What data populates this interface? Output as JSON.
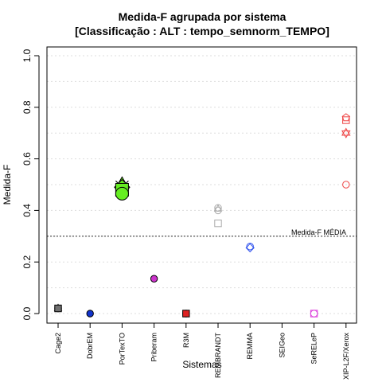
{
  "chart_data": {
    "type": "scatter",
    "title": "Medida-F agrupada por sistema",
    "subtitle": "[Classificação : ALT : tempo_semnorm_TEMPO]",
    "xlabel": "Sistemas",
    "ylabel": "Medida-F",
    "ylim": [
      0,
      1
    ],
    "yticks": [
      0.0,
      0.2,
      0.4,
      0.6,
      0.8,
      1.0
    ],
    "ytick_labels": [
      "0.0",
      "0.2",
      "0.4",
      "0.6",
      "0.8",
      "1.0"
    ],
    "grid": true,
    "categories": [
      "Cage2",
      "DobrEM",
      "PorTexTO",
      "Priberam",
      "R3M",
      "REMBRANDT",
      "REMMA",
      "SEIGeo",
      "SeRELeP",
      "XIP-L2F/Xerox"
    ],
    "reference_line": {
      "label": "Medida-F MÉDIA",
      "value": 0.3
    },
    "points": [
      {
        "category": "Cage2",
        "y": 0.02,
        "shape": "triangle",
        "fill": "#707070",
        "stroke": "#000000"
      },
      {
        "category": "Cage2",
        "y": 0.02,
        "shape": "circle",
        "fill": "#707070",
        "stroke": "#000000"
      },
      {
        "category": "Cage2",
        "y": 0.02,
        "shape": "square",
        "fill": "#707070",
        "stroke": "#000000"
      },
      {
        "category": "DobrEM",
        "y": 0.0,
        "shape": "circle",
        "fill": "#1133cc",
        "stroke": "#000000"
      },
      {
        "category": "PorTexTO",
        "y": 0.5,
        "shape": "triangle",
        "fill": "#66ee22",
        "stroke": "#000000"
      },
      {
        "category": "PorTexTO",
        "y": 0.49,
        "shape": "diamond",
        "fill": "#66ee22",
        "stroke": "#000000"
      },
      {
        "category": "PorTexTO",
        "y": 0.49,
        "shape": "x",
        "fill": "none",
        "stroke": "#000000"
      },
      {
        "category": "PorTexTO",
        "y": 0.48,
        "shape": "square",
        "fill": "#66ee22",
        "stroke": "#000000"
      },
      {
        "category": "PorTexTO",
        "y": 0.465,
        "shape": "circle",
        "fill": "#66ee22",
        "stroke": "#000000"
      },
      {
        "category": "Priberam",
        "y": 0.135,
        "shape": "circle",
        "fill": "#cc33cc",
        "stroke": "#000000"
      },
      {
        "category": "R3M",
        "y": 0.0,
        "shape": "circle",
        "fill": "#dd2222",
        "stroke": "#000000"
      },
      {
        "category": "R3M",
        "y": 0.0,
        "shape": "square",
        "fill": "#dd2222",
        "stroke": "#000000"
      },
      {
        "category": "REMBRANDT",
        "y": 0.41,
        "shape": "circle",
        "fill": "none",
        "stroke": "#aaaaaa"
      },
      {
        "category": "REMBRANDT",
        "y": 0.405,
        "shape": "triangle",
        "fill": "none",
        "stroke": "#aaaaaa"
      },
      {
        "category": "REMBRANDT",
        "y": 0.4,
        "shape": "circle",
        "fill": "none",
        "stroke": "#aaaaaa"
      },
      {
        "category": "REMBRANDT",
        "y": 0.35,
        "shape": "square",
        "fill": "none",
        "stroke": "#aaaaaa"
      },
      {
        "category": "REMMA",
        "y": 0.26,
        "shape": "circle",
        "fill": "none",
        "stroke": "#3355ee"
      },
      {
        "category": "REMMA",
        "y": 0.255,
        "shape": "diamond",
        "fill": "none",
        "stroke": "#3355ee"
      },
      {
        "category": "SeRELeP",
        "y": 0.0,
        "shape": "square",
        "fill": "none",
        "stroke": "#dd44dd"
      },
      {
        "category": "SeRELeP",
        "y": 0.0,
        "shape": "circle",
        "fill": "none",
        "stroke": "#dd44dd"
      },
      {
        "category": "XIP-L2F/Xerox",
        "y": 0.76,
        "shape": "pentagon",
        "fill": "none",
        "stroke": "#ee4444"
      },
      {
        "category": "XIP-L2F/Xerox",
        "y": 0.75,
        "shape": "square",
        "fill": "none",
        "stroke": "#ee4444"
      },
      {
        "category": "XIP-L2F/Xerox",
        "y": 0.7,
        "shape": "star",
        "fill": "none",
        "stroke": "#ee4444"
      },
      {
        "category": "XIP-L2F/Xerox",
        "y": 0.5,
        "shape": "circle",
        "fill": "none",
        "stroke": "#ee4444"
      }
    ]
  }
}
